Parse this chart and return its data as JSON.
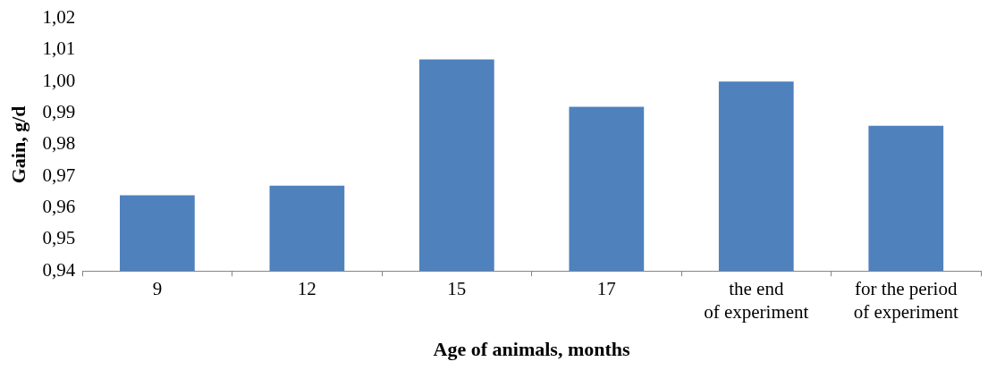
{
  "chart_data": {
    "type": "bar",
    "xlabel": "Age of animals, months",
    "ylabel": "Gain, g/d",
    "categories": [
      "9",
      "12",
      "15",
      "17",
      "the end of experiment",
      "for the period of experiment"
    ],
    "values": [
      0.964,
      0.967,
      1.007,
      0.992,
      1.0,
      0.986
    ],
    "color": "#4f81bd",
    "ylim": [
      0.94,
      1.02
    ],
    "yticks": [
      {
        "value": 0.94,
        "label": "0,94"
      },
      {
        "value": 0.95,
        "label": "0,95"
      },
      {
        "value": 0.96,
        "label": "0,96"
      },
      {
        "value": 0.97,
        "label": "0,97"
      },
      {
        "value": 0.98,
        "label": "0,98"
      },
      {
        "value": 0.99,
        "label": "0,99"
      },
      {
        "value": 1.0,
        "label": "1,00"
      },
      {
        "value": 1.01,
        "label": "1,01"
      },
      {
        "value": 1.02,
        "label": "1,02"
      }
    ],
    "grid": false,
    "legend": false
  }
}
